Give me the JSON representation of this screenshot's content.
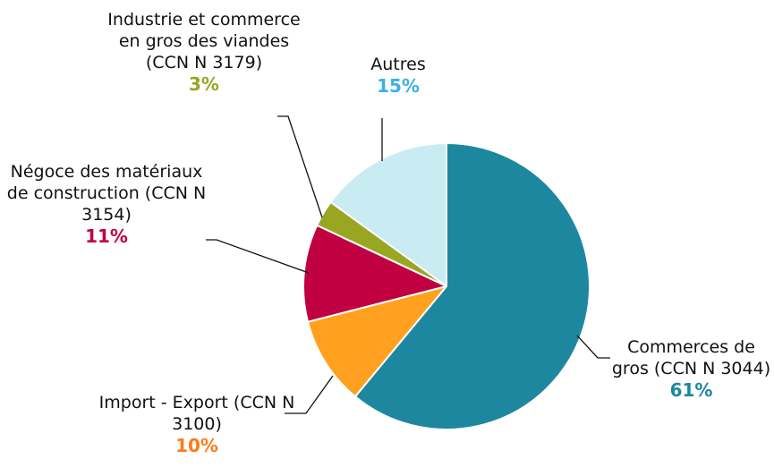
{
  "chart_data": {
    "type": "pie",
    "categories": [
      "Commerces de gros (CCN N  3044)",
      "Import - Export (CCN N  3100)",
      "Négoce des matériaux de construction (CCN N  3154)",
      "Industrie et commerce en gros des viandes (CCN N  3179)",
      "Autres"
    ],
    "values": [
      61,
      10,
      11,
      3,
      15
    ],
    "value_labels": [
      "61%",
      "10%",
      "11%",
      "3%",
      "15%"
    ],
    "colors": [
      "#1e87a0",
      "#ffa11f",
      "#c00040",
      "#98a622",
      "#c9ecf2"
    ],
    "label_colors": [
      "#1e87a0",
      "#ff7a1a",
      "#c00040",
      "#98a622",
      "#3bb0e8"
    ]
  }
}
